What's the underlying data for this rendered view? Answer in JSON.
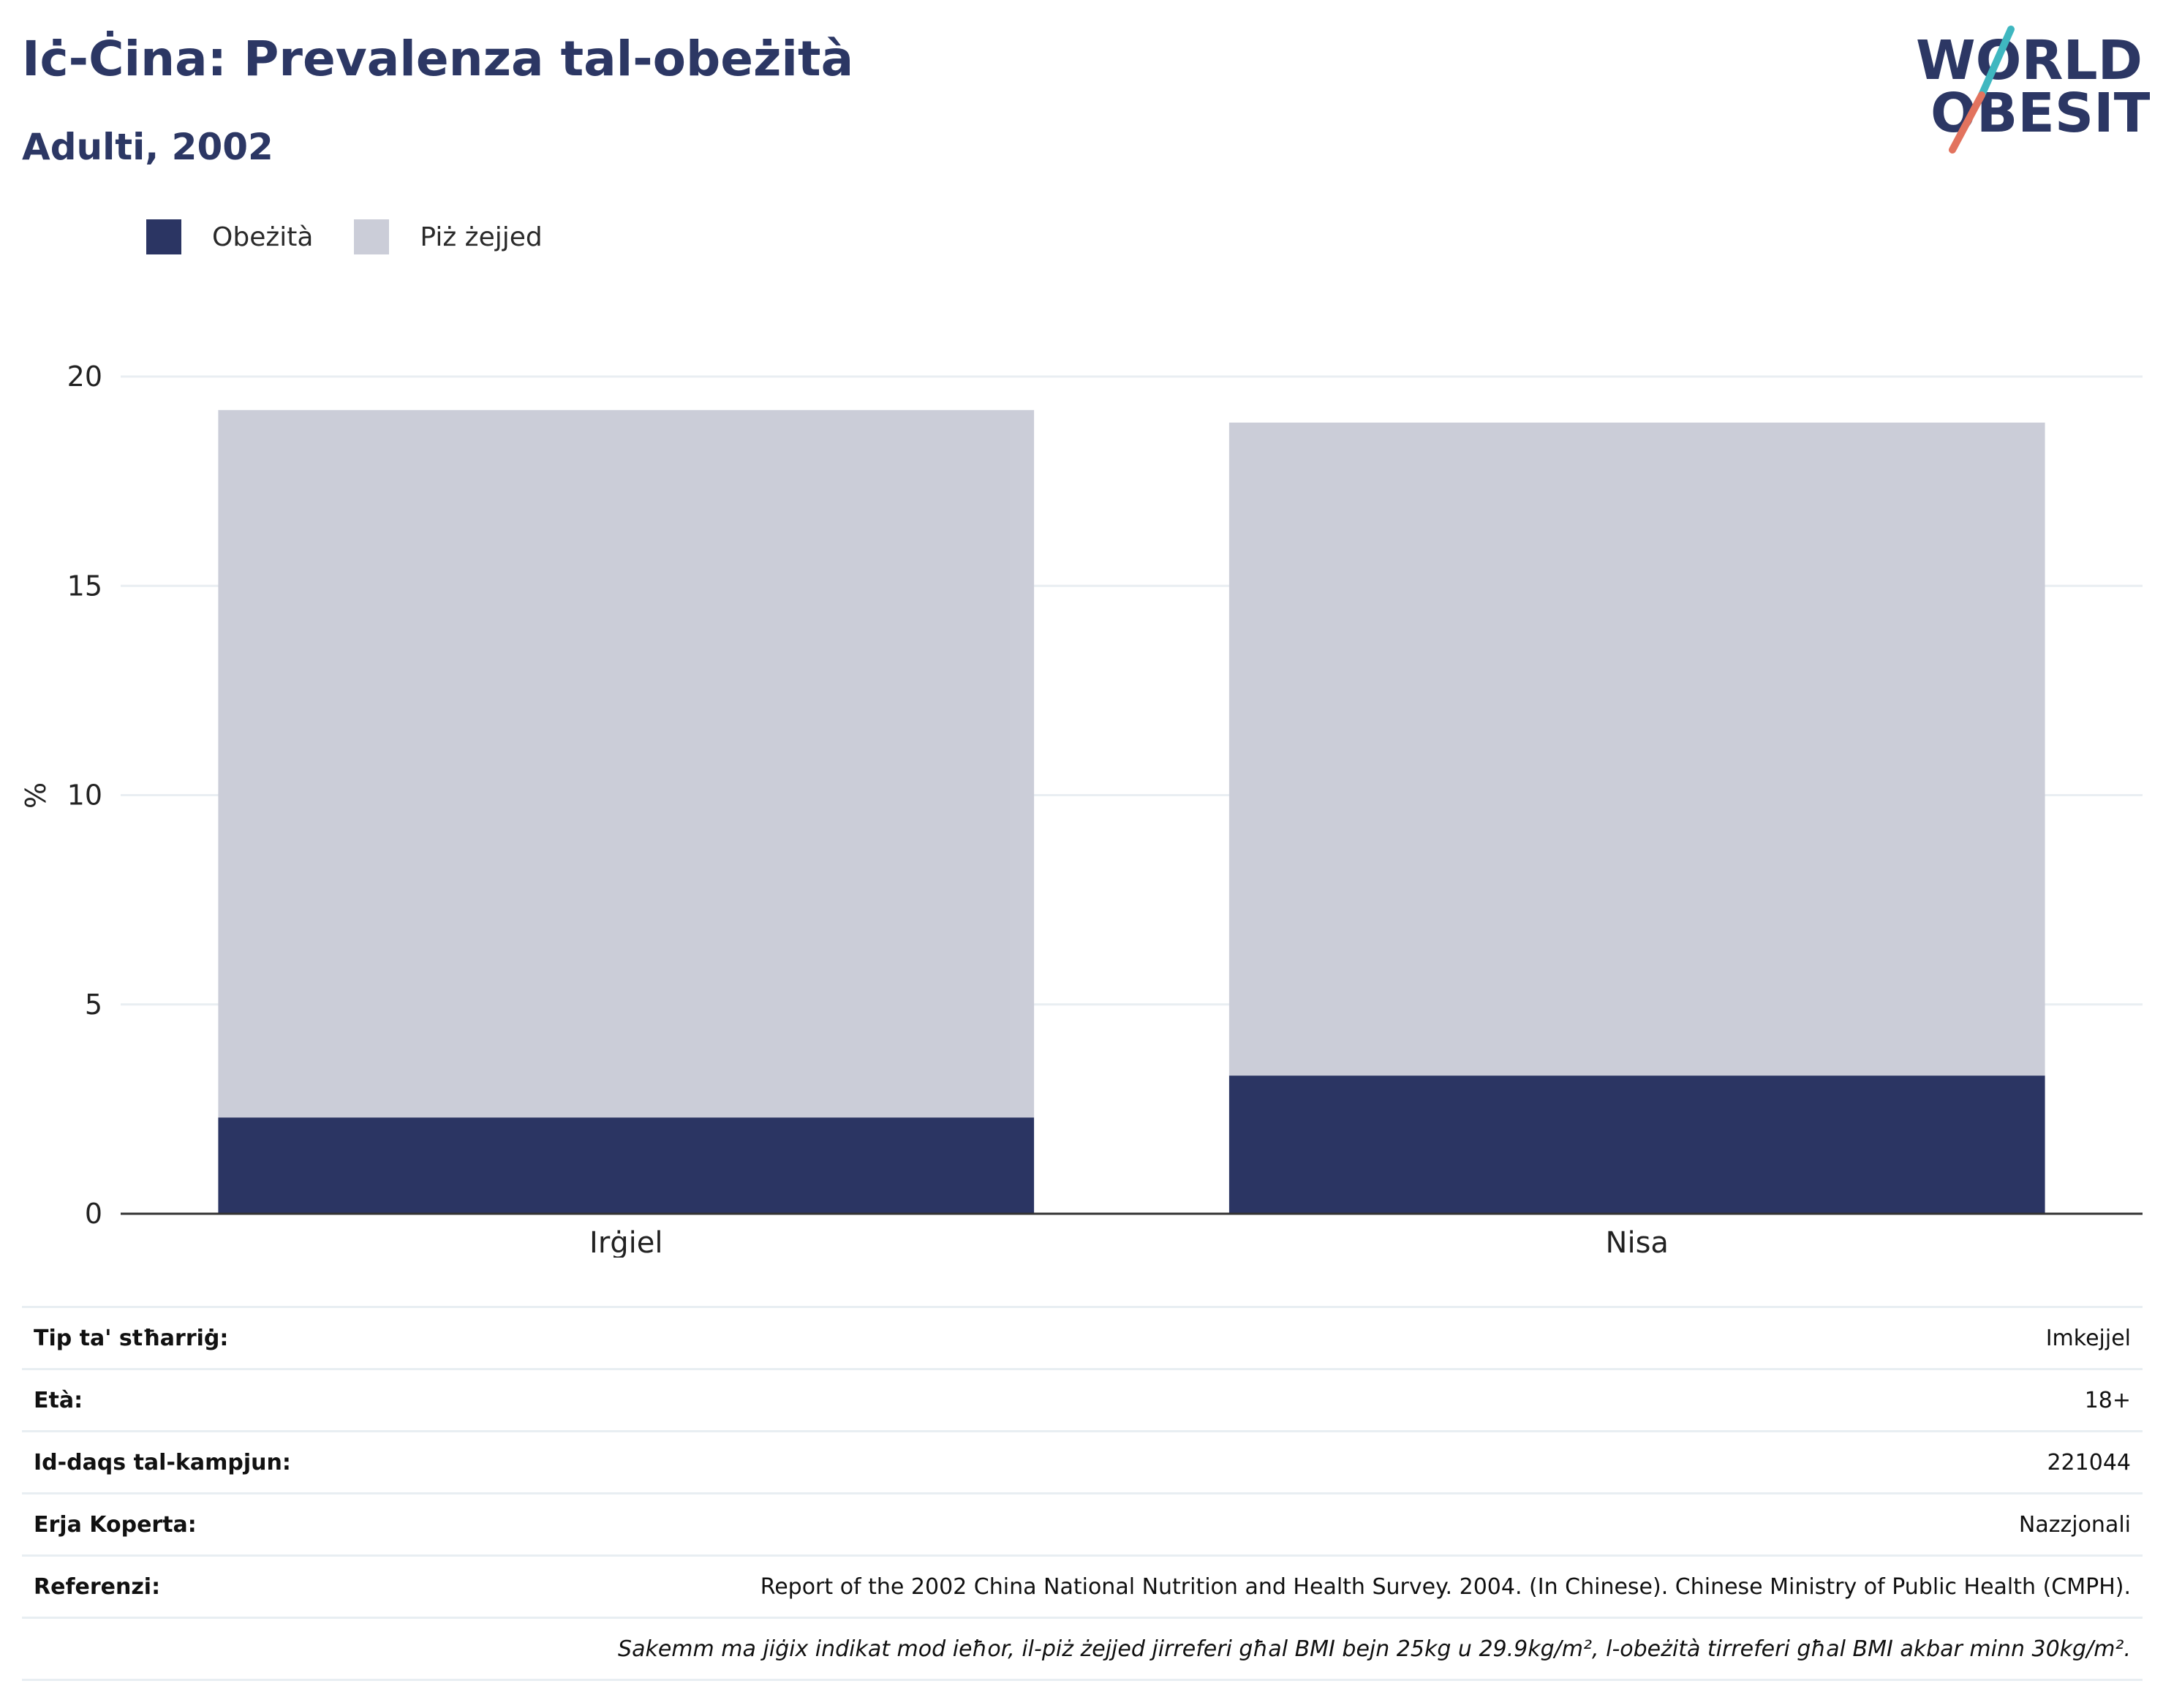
{
  "header": {
    "title": "Iċ-Ċina: Prevalenza tal-obeżità",
    "subtitle": "Adulti, 2002"
  },
  "logo": {
    "line1": "WORLD",
    "line2": "OBESITY"
  },
  "colors": {
    "obesity": "#2b3563",
    "overweight": "#cbcdd8",
    "axis": "#333333",
    "grid": "#e9eef2"
  },
  "chart_data": {
    "type": "bar",
    "stacked": true,
    "categories": [
      "Irġiel",
      "Nisa"
    ],
    "series": [
      {
        "name": "Obeżità",
        "values": [
          2.3,
          3.3
        ]
      },
      {
        "name": "Piż żejjed",
        "values": [
          16.9,
          15.6
        ]
      }
    ],
    "ylabel": "%",
    "ylim": [
      0,
      20
    ],
    "yticks": [
      0,
      5,
      10,
      15,
      20
    ],
    "grid": true,
    "legend": "top-left"
  },
  "info": {
    "rows": [
      {
        "label": "Tip ta' stħarriġ:",
        "value": "Imkejjel"
      },
      {
        "label": "Età:",
        "value": "18+"
      },
      {
        "label": "Id-daqs tal-kampjun:",
        "value": "221044"
      },
      {
        "label": "Erja Koperta:",
        "value": "Nazzjonali"
      },
      {
        "label": "Referenzi:",
        "value": "Report of the 2002 China National Nutrition and Health Survey. 2004. (In Chinese). Chinese Ministry of Public Health (CMPH)."
      }
    ],
    "note": "Sakemm ma jiġix indikat mod ieħor, il-piż żejjed jirreferi għal BMI bejn 25kg u 29.9kg/m², l-obeżità tirreferi għal BMI akbar minn 30kg/m²."
  }
}
